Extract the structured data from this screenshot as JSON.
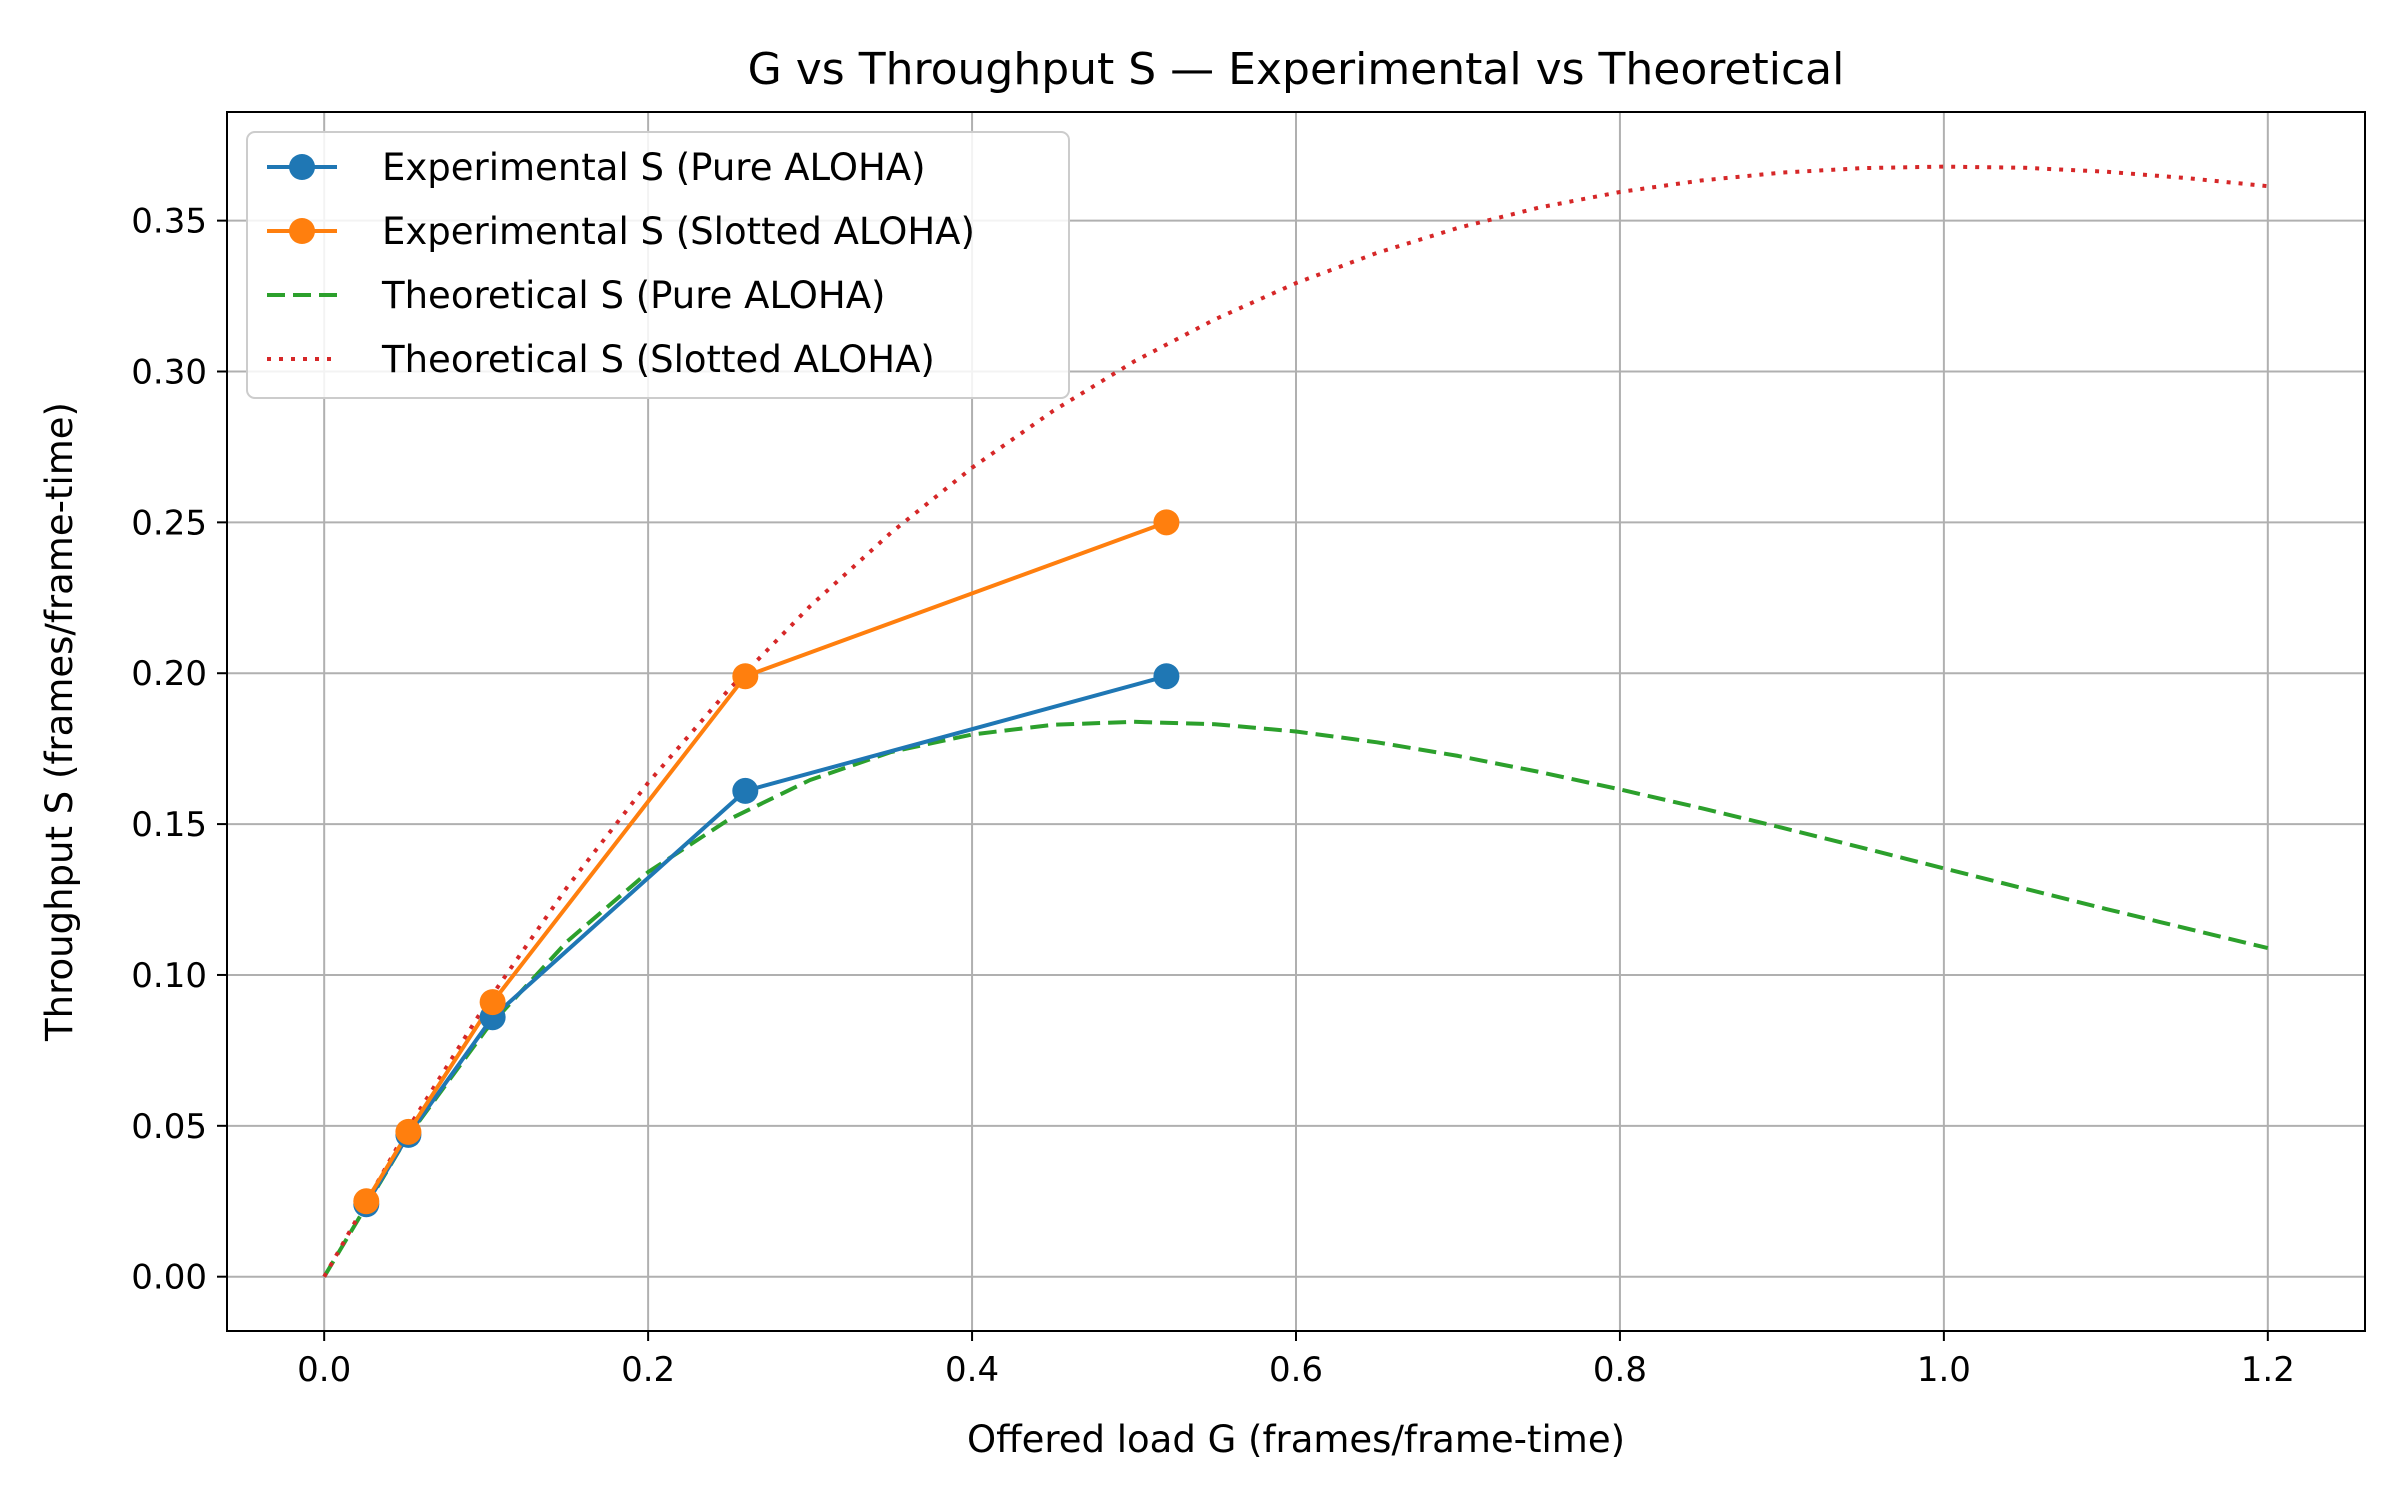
{
  "chart_data": {
    "type": "line",
    "title": "G vs Throughput S — Experimental vs Theoretical",
    "xlabel": "Offered load G (frames/frame-time)",
    "ylabel": "Throughput S (frames/frame-time)",
    "xlim": [
      -0.06,
      1.26
    ],
    "ylim": [
      -0.018,
      0.386
    ],
    "xticks": [
      0.0,
      0.2,
      0.4,
      0.6,
      0.8,
      1.0,
      1.2
    ],
    "xtick_labels": [
      "0.0",
      "0.2",
      "0.4",
      "0.6",
      "0.8",
      "1.0",
      "1.2"
    ],
    "yticks": [
      0.0,
      0.05,
      0.1,
      0.15,
      0.2,
      0.25,
      0.3,
      0.35
    ],
    "ytick_labels": [
      "0.00",
      "0.05",
      "0.10",
      "0.15",
      "0.20",
      "0.25",
      "0.30",
      "0.35"
    ],
    "grid": true,
    "legend_position": "top-left",
    "series": [
      {
        "name": "Experimental S (Pure ALOHA)",
        "color": "#1f77b4",
        "style": "solid-marker",
        "x": [
          0.026,
          0.052,
          0.104,
          0.26,
          0.52
        ],
        "y": [
          0.024,
          0.047,
          0.086,
          0.161,
          0.199
        ]
      },
      {
        "name": "Experimental S (Slotted ALOHA)",
        "color": "#ff7f0e",
        "style": "solid-marker",
        "x": [
          0.026,
          0.052,
          0.104,
          0.26,
          0.52
        ],
        "y": [
          0.025,
          0.048,
          0.091,
          0.199,
          0.25
        ]
      },
      {
        "name": "Theoretical S (Pure ALOHA)",
        "color": "#2ca02c",
        "style": "dashed",
        "x": [
          0.0,
          0.05,
          0.1,
          0.15,
          0.2,
          0.25,
          0.3,
          0.35,
          0.4,
          0.45,
          0.5,
          0.55,
          0.6,
          0.65,
          0.7,
          0.75,
          0.8,
          0.85,
          0.9,
          0.95,
          1.0,
          1.05,
          1.1,
          1.15,
          1.2
        ],
        "y": [
          0.0,
          0.0452,
          0.0819,
          0.1111,
          0.1341,
          0.1516,
          0.1646,
          0.1739,
          0.1797,
          0.1829,
          0.1839,
          0.1831,
          0.1807,
          0.1771,
          0.1726,
          0.1673,
          0.1615,
          0.1553,
          0.1488,
          0.1421,
          0.1353,
          0.1286,
          0.1219,
          0.1154,
          0.1089
        ]
      },
      {
        "name": "Theoretical S (Slotted ALOHA)",
        "color": "#d62728",
        "style": "dotted",
        "x": [
          0.0,
          0.05,
          0.1,
          0.15,
          0.2,
          0.25,
          0.3,
          0.35,
          0.4,
          0.45,
          0.5,
          0.55,
          0.6,
          0.65,
          0.7,
          0.75,
          0.8,
          0.85,
          0.9,
          0.95,
          1.0,
          1.05,
          1.1,
          1.15,
          1.2
        ],
        "y": [
          0.0,
          0.0476,
          0.0905,
          0.1291,
          0.1637,
          0.1947,
          0.2222,
          0.2466,
          0.2681,
          0.2869,
          0.3033,
          0.3173,
          0.3293,
          0.3393,
          0.3476,
          0.3543,
          0.3595,
          0.3633,
          0.3659,
          0.3674,
          0.3679,
          0.3675,
          0.3662,
          0.3641,
          0.3614
        ]
      }
    ]
  }
}
